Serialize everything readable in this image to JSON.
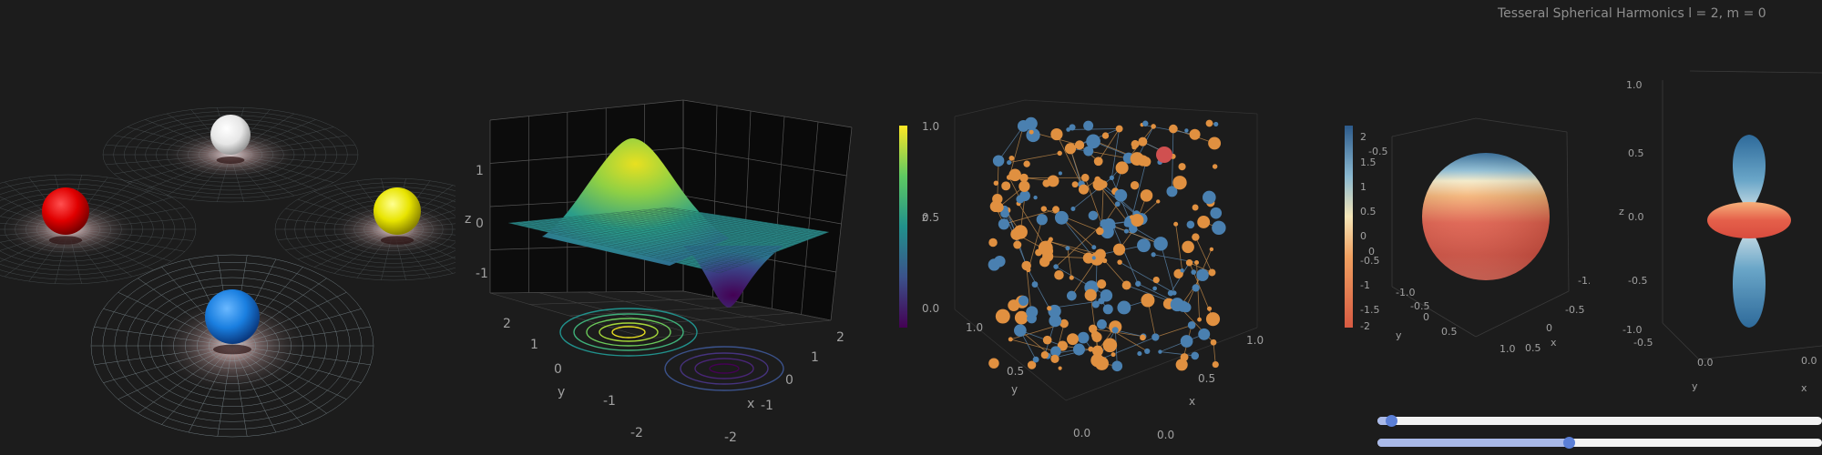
{
  "figure": {
    "harmonics_title": "Tesseral Spherical Harmonics l = 2, m = 0"
  },
  "chart_data": [
    {
      "type": "scatter",
      "id": "spheres-on-grids",
      "points": [
        {
          "color": "#f0f0f0",
          "size": 1.0
        },
        {
          "color": "#e01010",
          "size": 1.2
        },
        {
          "color": "#e4e000",
          "size": 1.2
        },
        {
          "color": "#1a7fe0",
          "size": 1.4
        }
      ]
    },
    {
      "type": "surface",
      "id": "gaussian-surface",
      "xlabel": "x",
      "ylabel": "y",
      "zlabel": "z",
      "xticks": [
        "-2",
        "-1",
        "0",
        "1",
        "2"
      ],
      "yticks": [
        "-2",
        "-1",
        "0",
        "1",
        "2"
      ],
      "zticks": [
        "-1",
        "0",
        "1"
      ],
      "colormap": "viridis"
    },
    {
      "type": "scatter",
      "id": "random-network",
      "xlabel": "x",
      "ylabel": "y",
      "zlabel": "z",
      "zticks": [
        "0.0",
        "0.5",
        "1.0"
      ],
      "xticks": [
        "0.0",
        "0.5",
        "1.0"
      ],
      "yticks": [
        "0.0",
        "0.5",
        "1.0"
      ],
      "colors": [
        "#e09040",
        "#4a80b0"
      ]
    },
    {
      "type": "surface",
      "id": "harmonic-sphere",
      "colorbar_ticks": [
        "2",
        "1.5",
        "1",
        "0.5",
        "0",
        "-0.5",
        "-1",
        "-1.5",
        "-2"
      ],
      "xlabel": "x",
      "ylabel": "y",
      "xticks": [
        "-1.0",
        "-0.5",
        "0",
        "0.5",
        "1.0"
      ],
      "yticks": [
        "-1.0",
        "-0.5",
        "0",
        "0.5",
        "1.0"
      ],
      "zticks": [
        "-1.0",
        "-0.5",
        "0",
        "0.5",
        "1.0"
      ]
    },
    {
      "type": "surface",
      "id": "harmonic-lobes",
      "zlabel": "z",
      "ylabel": "y",
      "zticks": [
        "1.0",
        "0.5",
        "0.0",
        "-0.5",
        "-1.0"
      ],
      "yticks": [
        "-0.5",
        "0.0"
      ]
    }
  ],
  "sliders": {
    "l_value_fraction": 0.03,
    "m_value_fraction": 0.43
  }
}
